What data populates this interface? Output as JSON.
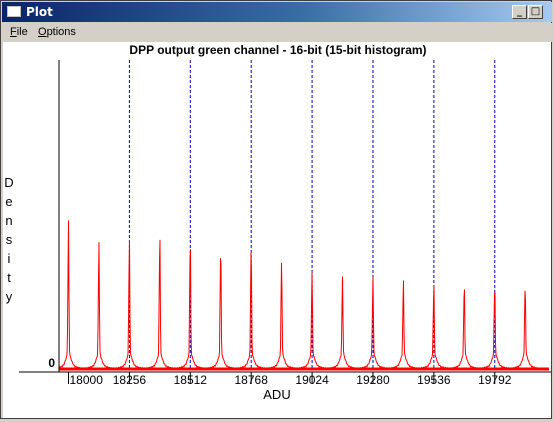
{
  "window": {
    "title": "Plot"
  },
  "menu": {
    "file": "File",
    "file_acc": "F",
    "file_rest": "ile",
    "options_acc": "O",
    "options_rest": "ptions"
  },
  "chart_data": {
    "type": "line",
    "title": "DPP output green channel - 16-bit (15-bit histogram)",
    "xlabel": "ADU",
    "ylabel": "Density",
    "xlim": [
      17960,
      20020
    ],
    "x_ticks": [
      18000,
      18256,
      18512,
      18768,
      19024,
      19280,
      19536,
      19792
    ],
    "y_tick_labels": [
      "0"
    ],
    "grid": "vertical dashed at 256-ADU intervals",
    "peaks": {
      "x": [
        18000,
        18128,
        18256,
        18384,
        18512,
        18640,
        18768,
        18896,
        19024,
        19152,
        19280,
        19408,
        19536,
        19664,
        19792,
        19920
      ],
      "y": [
        1.0,
        0.85,
        0.88,
        0.93,
        0.9,
        0.84,
        0.84,
        0.72,
        0.62,
        0.58,
        0.58,
        0.56,
        0.54,
        0.54,
        0.55,
        0.53
      ]
    },
    "colors": {
      "series": "#ff0000",
      "grid": "#0000c0"
    }
  }
}
